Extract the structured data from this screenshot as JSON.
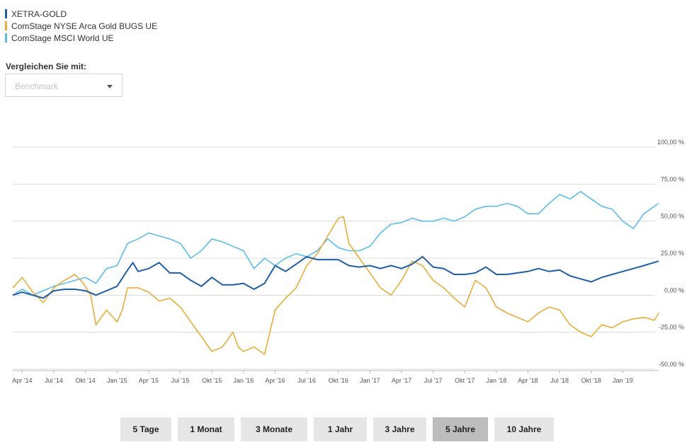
{
  "legend": [
    {
      "label": "XETRA-GOLD",
      "color": "#1f5fa8"
    },
    {
      "label": "ComStage NYSE Arca Gold BUGS UE",
      "color": "#e8ad3c"
    },
    {
      "label": "ComStage MSCI World UE",
      "color": "#5bbde8"
    }
  ],
  "compare": {
    "label": "Vergleichen Sie mit:",
    "placeholder": "Benchmark",
    "caret_icon": "chevron-down-icon"
  },
  "ranges": [
    {
      "label": "5 Tage",
      "active": false
    },
    {
      "label": "1 Monat",
      "active": false
    },
    {
      "label": "3 Monate",
      "active": false
    },
    {
      "label": "1 Jahr",
      "active": false
    },
    {
      "label": "3 Jahre",
      "active": false
    },
    {
      "label": "5 Jahre",
      "active": true
    },
    {
      "label": "10 Jahre",
      "active": false
    }
  ],
  "chart_data": {
    "type": "line",
    "x_tick_labels": [
      "Apr '14",
      "Jul '14",
      "Okt '14",
      "Jan '15",
      "Apr '15",
      "Jul '15",
      "Okt '15",
      "Jan '16",
      "Apr '16",
      "Jul '16",
      "Okt '16",
      "Jan '17",
      "Apr '17",
      "Jul '17",
      "Okt '17",
      "Jan '18",
      "Apr '18",
      "Jul '18",
      "Okt '18",
      "Jan '19"
    ],
    "y_tick_labels": [
      "100,00 %",
      "75,00 %",
      "50,00 %",
      "25,00 %",
      "0,00 %",
      "-25,00 %",
      "-50,00 %"
    ],
    "y_ticks": [
      100,
      75,
      50,
      25,
      0,
      -25,
      -50
    ],
    "ylim": [
      -50,
      100
    ],
    "x_unit": "months since Jan 2014",
    "xlim": [
      2.1,
      63.4
    ],
    "grid": true,
    "legend_position": "top-left",
    "series": [
      {
        "name": "XETRA-GOLD",
        "color": "#1f5fa8",
        "points": [
          [
            2.1,
            0
          ],
          [
            3.0,
            2
          ],
          [
            4.0,
            0
          ],
          [
            5.0,
            -2
          ],
          [
            6.0,
            3
          ],
          [
            7.0,
            4
          ],
          [
            8.0,
            4
          ],
          [
            9.0,
            3
          ],
          [
            10.0,
            0
          ],
          [
            11.0,
            3
          ],
          [
            12.0,
            6
          ],
          [
            13.0,
            17
          ],
          [
            13.5,
            22
          ],
          [
            14.0,
            16
          ],
          [
            15.0,
            18
          ],
          [
            16.0,
            22
          ],
          [
            17.0,
            15
          ],
          [
            18.0,
            15
          ],
          [
            19.0,
            10
          ],
          [
            20.0,
            6
          ],
          [
            21.0,
            12
          ],
          [
            22.0,
            7
          ],
          [
            23.0,
            7
          ],
          [
            24.0,
            8
          ],
          [
            25.0,
            4
          ],
          [
            26.0,
            8
          ],
          [
            27.0,
            20
          ],
          [
            28.0,
            16
          ],
          [
            29.0,
            21
          ],
          [
            30.0,
            26
          ],
          [
            31.0,
            24
          ],
          [
            32.0,
            24
          ],
          [
            33.0,
            24
          ],
          [
            34.0,
            20
          ],
          [
            35.0,
            19
          ],
          [
            36.0,
            20
          ],
          [
            37.0,
            18
          ],
          [
            38.0,
            20
          ],
          [
            39.0,
            18
          ],
          [
            40.0,
            21
          ],
          [
            41.0,
            26
          ],
          [
            42.0,
            19
          ],
          [
            43.0,
            18
          ],
          [
            44.0,
            14
          ],
          [
            45.0,
            14
          ],
          [
            46.0,
            15
          ],
          [
            47.0,
            19
          ],
          [
            48.0,
            14
          ],
          [
            49.0,
            14
          ],
          [
            50.0,
            15
          ],
          [
            51.0,
            16
          ],
          [
            52.0,
            18
          ],
          [
            53.0,
            16
          ],
          [
            54.0,
            17
          ],
          [
            55.0,
            13
          ],
          [
            56.0,
            11
          ],
          [
            57.0,
            9
          ],
          [
            58.0,
            12
          ],
          [
            59.0,
            14
          ],
          [
            60.0,
            16
          ],
          [
            61.0,
            18
          ],
          [
            62.0,
            20
          ],
          [
            63.4,
            23
          ]
        ]
      },
      {
        "name": "ComStage NYSE Arca Gold BUGS UE",
        "color": "#e8ad3c",
        "points": [
          [
            2.1,
            5
          ],
          [
            3.0,
            12
          ],
          [
            4.0,
            2
          ],
          [
            5.0,
            -5
          ],
          [
            6.0,
            5
          ],
          [
            7.0,
            10
          ],
          [
            8.0,
            14
          ],
          [
            8.8,
            8
          ],
          [
            9.5,
            0
          ],
          [
            10.0,
            -20
          ],
          [
            11.0,
            -10
          ],
          [
            12.0,
            -18
          ],
          [
            12.5,
            -10
          ],
          [
            13.0,
            5
          ],
          [
            14.0,
            5
          ],
          [
            15.0,
            2
          ],
          [
            16.0,
            -4
          ],
          [
            17.0,
            -2
          ],
          [
            18.0,
            -8
          ],
          [
            19.0,
            -18
          ],
          [
            20.0,
            -28
          ],
          [
            21.0,
            -38
          ],
          [
            22.0,
            -35
          ],
          [
            23.0,
            -25
          ],
          [
            23.5,
            -35
          ],
          [
            24.0,
            -38
          ],
          [
            25.0,
            -35
          ],
          [
            26.0,
            -40
          ],
          [
            27.0,
            -10
          ],
          [
            28.0,
            -2
          ],
          [
            29.0,
            5
          ],
          [
            30.0,
            20
          ],
          [
            31.0,
            28
          ],
          [
            32.0,
            40
          ],
          [
            33.0,
            52
          ],
          [
            33.5,
            53
          ],
          [
            34.0,
            35
          ],
          [
            35.0,
            25
          ],
          [
            36.0,
            15
          ],
          [
            37.0,
            5
          ],
          [
            38.0,
            0
          ],
          [
            39.0,
            10
          ],
          [
            40.0,
            23
          ],
          [
            41.0,
            20
          ],
          [
            42.0,
            10
          ],
          [
            43.0,
            5
          ],
          [
            44.0,
            -2
          ],
          [
            45.0,
            -8
          ],
          [
            46.0,
            10
          ],
          [
            47.0,
            5
          ],
          [
            48.0,
            -8
          ],
          [
            49.0,
            -12
          ],
          [
            50.0,
            -15
          ],
          [
            51.0,
            -18
          ],
          [
            52.0,
            -12
          ],
          [
            53.0,
            -8
          ],
          [
            54.0,
            -10
          ],
          [
            55.0,
            -20
          ],
          [
            56.0,
            -25
          ],
          [
            57.0,
            -28
          ],
          [
            58.0,
            -20
          ],
          [
            59.0,
            -22
          ],
          [
            60.0,
            -18
          ],
          [
            61.0,
            -16
          ],
          [
            62.0,
            -15
          ],
          [
            63.0,
            -17
          ],
          [
            63.4,
            -12
          ]
        ]
      },
      {
        "name": "ComStage MSCI World UE",
        "color": "#5bbde8",
        "points": [
          [
            2.1,
            0
          ],
          [
            3.0,
            4
          ],
          [
            4.0,
            0
          ],
          [
            5.0,
            3
          ],
          [
            6.0,
            6
          ],
          [
            7.0,
            8
          ],
          [
            8.0,
            10
          ],
          [
            9.0,
            12
          ],
          [
            10.0,
            8
          ],
          [
            11.0,
            18
          ],
          [
            12.0,
            20
          ],
          [
            13.0,
            35
          ],
          [
            14.0,
            38
          ],
          [
            15.0,
            42
          ],
          [
            16.0,
            40
          ],
          [
            17.0,
            38
          ],
          [
            18.0,
            35
          ],
          [
            19.0,
            25
          ],
          [
            20.0,
            30
          ],
          [
            21.0,
            38
          ],
          [
            22.0,
            36
          ],
          [
            23.0,
            33
          ],
          [
            24.0,
            30
          ],
          [
            25.0,
            18
          ],
          [
            26.0,
            25
          ],
          [
            27.0,
            20
          ],
          [
            28.0,
            25
          ],
          [
            29.0,
            28
          ],
          [
            30.0,
            26
          ],
          [
            31.0,
            30
          ],
          [
            32.0,
            38
          ],
          [
            33.0,
            32
          ],
          [
            34.0,
            30
          ],
          [
            35.0,
            30
          ],
          [
            36.0,
            33
          ],
          [
            37.0,
            42
          ],
          [
            38.0,
            48
          ],
          [
            39.0,
            49
          ],
          [
            40.0,
            52
          ],
          [
            41.0,
            50
          ],
          [
            42.0,
            50
          ],
          [
            43.0,
            52
          ],
          [
            44.0,
            50
          ],
          [
            45.0,
            53
          ],
          [
            46.0,
            58
          ],
          [
            47.0,
            60
          ],
          [
            48.0,
            60
          ],
          [
            49.0,
            62
          ],
          [
            50.0,
            60
          ],
          [
            51.0,
            55
          ],
          [
            52.0,
            55
          ],
          [
            53.0,
            62
          ],
          [
            54.0,
            68
          ],
          [
            55.0,
            65
          ],
          [
            56.0,
            70
          ],
          [
            57.0,
            65
          ],
          [
            58.0,
            60
          ],
          [
            59.0,
            58
          ],
          [
            60.0,
            50
          ],
          [
            61.0,
            45
          ],
          [
            62.0,
            55
          ],
          [
            63.0,
            60
          ],
          [
            63.4,
            62
          ]
        ]
      }
    ]
  }
}
